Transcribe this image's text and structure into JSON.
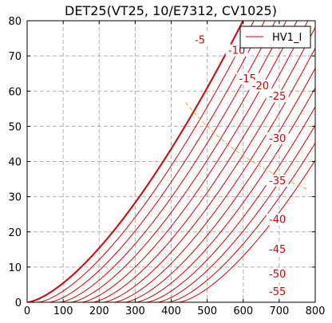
{
  "chart_data": {
    "type": "line",
    "title": "DET25(VT25, 10/E7312, CV1025)",
    "xlabel": "",
    "ylabel": "",
    "xlim": [
      0,
      800
    ],
    "ylim": [
      0,
      80
    ],
    "x_ticks": [
      0,
      100,
      200,
      300,
      400,
      500,
      600,
      700,
      800
    ],
    "y_ticks": [
      0,
      10,
      20,
      30,
      40,
      50,
      60,
      70,
      80
    ],
    "grid": true,
    "legend": {
      "position": "top-right",
      "entries": [
        "HV1_I"
      ]
    },
    "curve_model": {
      "mu": 6.0,
      "exponent": 1.5,
      "k": 0.00545
    },
    "series": [
      {
        "label": "",
        "grid_voltage": 0,
        "bold": true
      },
      {
        "label": "-5",
        "grid_voltage": -5,
        "bold": false
      },
      {
        "label": "-10",
        "grid_voltage": -10,
        "bold": false
      },
      {
        "label": "-15",
        "grid_voltage": -15,
        "bold": false
      },
      {
        "label": "-20",
        "grid_voltage": -20,
        "bold": false
      },
      {
        "label": "-25",
        "grid_voltage": -25,
        "bold": false
      },
      {
        "label": "-30",
        "grid_voltage": -30,
        "bold": false
      },
      {
        "label": "-35",
        "grid_voltage": -35,
        "bold": false
      },
      {
        "label": "-40",
        "grid_voltage": -40,
        "bold": false
      },
      {
        "label": "-45",
        "grid_voltage": -45,
        "bold": false
      },
      {
        "label": "-50",
        "grid_voltage": -50,
        "bold": false
      },
      {
        "label": "-55",
        "grid_voltage": -55,
        "bold": false
      },
      {
        "label": "",
        "grid_voltage": -60,
        "bold": false
      },
      {
        "label": "",
        "grid_voltage": -65,
        "bold": false
      },
      {
        "label": "",
        "grid_voltage": -70,
        "bold": false
      }
    ],
    "curve_labels": [
      {
        "text": "-5",
        "x": 480,
        "y": 74
      },
      {
        "text": "-10",
        "x": 582,
        "y": 71
      },
      {
        "text": "-15",
        "x": 612,
        "y": 63
      },
      {
        "text": "-20",
        "x": 648,
        "y": 61
      },
      {
        "text": "-25",
        "x": 695,
        "y": 58
      },
      {
        "text": "-30",
        "x": 695,
        "y": 46
      },
      {
        "text": "-35",
        "x": 695,
        "y": 34
      },
      {
        "text": "-40",
        "x": 695,
        "y": 23
      },
      {
        "text": "-45",
        "x": 695,
        "y": 14.5
      },
      {
        "text": "-50",
        "x": 695,
        "y": 7.5
      },
      {
        "text": "-55",
        "x": 695,
        "y": 2.5
      }
    ],
    "dissipation_curve": {
      "watts": 25,
      "x_range": [
        440,
        780
      ]
    },
    "colors": {
      "curve": "#dd0000",
      "dissipation": "#f2a23a",
      "grid": "#b0b0b0",
      "axes": "#000000"
    }
  }
}
